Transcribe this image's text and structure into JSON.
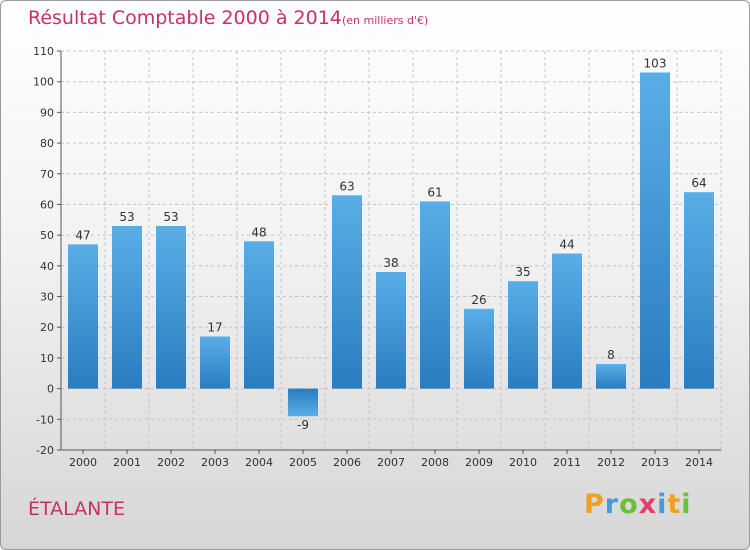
{
  "header": {
    "title": "Résultat Comptable 2000 à 2014",
    "subtitle": "(en milliers d'€)"
  },
  "footer": {
    "commune": "ÉTALANTE",
    "logo_text": "Proxiti"
  },
  "colors": {
    "title": "#c8306a",
    "bar_light": "#5aaee6",
    "bar_dark": "#2a7cbf"
  },
  "chart_data": {
    "type": "bar",
    "title": "Résultat Comptable 2000 à 2014",
    "subtitle": "(en milliers d'€)",
    "xlabel": "",
    "ylabel": "",
    "categories": [
      "2000",
      "2001",
      "2002",
      "2003",
      "2004",
      "2005",
      "2006",
      "2007",
      "2008",
      "2009",
      "2010",
      "2011",
      "2012",
      "2013",
      "2014"
    ],
    "values": [
      47,
      53,
      53,
      17,
      48,
      -9,
      63,
      38,
      61,
      26,
      35,
      44,
      8,
      103,
      64
    ],
    "ylim": [
      -20,
      110
    ],
    "yticks": [
      -20,
      -10,
      0,
      10,
      20,
      30,
      40,
      50,
      60,
      70,
      80,
      90,
      100,
      110
    ],
    "grid": true,
    "legend": "none"
  }
}
